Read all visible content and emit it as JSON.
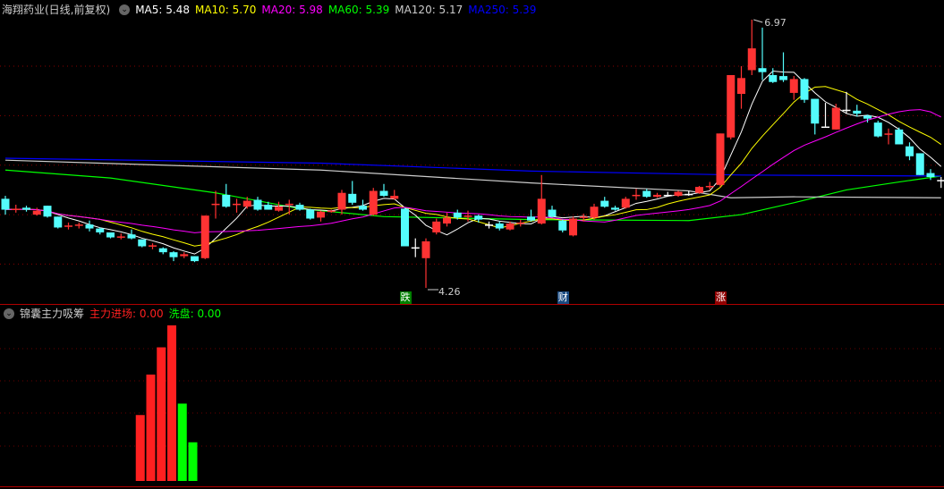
{
  "header": {
    "title": "海翔药业(日线,前复权)",
    "ma": [
      {
        "label": "MA5: 5.48",
        "color": "#ffffff"
      },
      {
        "label": "MA10: 5.70",
        "color": "#ffff00"
      },
      {
        "label": "MA20: 5.98",
        "color": "#ff00ff"
      },
      {
        "label": "MA60: 5.39",
        "color": "#00ff00"
      },
      {
        "label": "MA120: 5.17",
        "color": "#cccccc"
      },
      {
        "label": "MA250: 5.39",
        "color": "#0000ff"
      }
    ]
  },
  "indicator": {
    "name": "锦囊主力吸筹",
    "main_label": "主力进场: 0.00",
    "main_color": "#ff2020",
    "wash_label": "洗盘: 0.00",
    "wash_color": "#00ff00"
  },
  "chart_data": [
    {
      "type": "candlestick",
      "ylim": [
        4.0,
        7.2
      ],
      "grid": true,
      "gridlines": [
        4.5,
        5.0,
        5.5,
        6.0,
        6.5
      ],
      "colors": {
        "up": "#ff3333",
        "down": "#54fcfc",
        "flat": "#ffffff"
      },
      "high_label": "6.97",
      "low_label": "4.26",
      "candles_ohlc_order": "open,close,high,low",
      "candles": [
        [
          5.16,
          5.05,
          5.19,
          5.0
        ],
        [
          5.06,
          5.06,
          5.1,
          5.02
        ],
        [
          5.07,
          5.05,
          5.09,
          5.03
        ],
        [
          5.0,
          5.04,
          5.07,
          4.99
        ],
        [
          5.09,
          4.98,
          5.09,
          4.97
        ],
        [
          4.98,
          4.87,
          4.98,
          4.86
        ],
        [
          4.88,
          4.89,
          4.92,
          4.85
        ],
        [
          4.89,
          4.9,
          4.92,
          4.86
        ],
        [
          4.9,
          4.86,
          4.94,
          4.83
        ],
        [
          4.86,
          4.82,
          4.87,
          4.8
        ],
        [
          4.82,
          4.77,
          4.82,
          4.76
        ],
        [
          4.78,
          4.78,
          4.81,
          4.75
        ],
        [
          4.8,
          4.76,
          4.85,
          4.75
        ],
        [
          4.75,
          4.68,
          4.75,
          4.67
        ],
        [
          4.68,
          4.69,
          4.71,
          4.65
        ],
        [
          4.66,
          4.62,
          4.67,
          4.6
        ],
        [
          4.62,
          4.57,
          4.63,
          4.53
        ],
        [
          4.58,
          4.6,
          4.62,
          4.56
        ],
        [
          4.58,
          4.53,
          4.58,
          4.52
        ],
        [
          4.56,
          4.99,
          4.99,
          4.55
        ],
        [
          5.1,
          5.11,
          5.24,
          4.96
        ],
        [
          5.2,
          5.08,
          5.31,
          5.07
        ],
        [
          5.1,
          5.11,
          5.16,
          5.02
        ],
        [
          5.08,
          5.14,
          5.18,
          5.06
        ],
        [
          5.15,
          5.05,
          5.18,
          5.04
        ],
        [
          5.1,
          5.05,
          5.13,
          5.05
        ],
        [
          5.04,
          5.08,
          5.13,
          5.03
        ],
        [
          5.1,
          5.11,
          5.15,
          5.0
        ],
        [
          5.1,
          5.05,
          5.12,
          5.04
        ],
        [
          5.05,
          4.96,
          5.06,
          4.95
        ],
        [
          4.97,
          5.03,
          5.04,
          4.93
        ],
        [
          5.03,
          5.04,
          5.05,
          5.02
        ],
        [
          5.05,
          5.22,
          5.25,
          5.0
        ],
        [
          5.21,
          5.12,
          5.34,
          5.1
        ],
        [
          5.09,
          5.05,
          5.15,
          5.04
        ],
        [
          5.0,
          5.24,
          5.27,
          4.99
        ],
        [
          5.24,
          5.19,
          5.31,
          5.18
        ],
        [
          5.16,
          5.19,
          5.25,
          5.15
        ],
        [
          5.06,
          4.68,
          5.07,
          4.68
        ],
        [
          4.67,
          4.67,
          4.76,
          4.57
        ],
        [
          4.56,
          4.73,
          4.76,
          4.26
        ],
        [
          4.82,
          4.93,
          4.96,
          4.8
        ],
        [
          4.91,
          4.97,
          5.02,
          4.88
        ],
        [
          5.02,
          4.97,
          5.05,
          4.95
        ],
        [
          4.98,
          4.99,
          5.04,
          4.93
        ],
        [
          4.99,
          4.95,
          5.0,
          4.92
        ],
        [
          4.9,
          4.9,
          4.93,
          4.86
        ],
        [
          4.91,
          4.86,
          4.93,
          4.84
        ],
        [
          4.85,
          4.91,
          4.93,
          4.84
        ],
        [
          4.91,
          4.92,
          4.95,
          4.88
        ],
        [
          4.98,
          4.94,
          5.05,
          4.93
        ],
        [
          4.91,
          5.16,
          5.4,
          4.9
        ],
        [
          5.05,
          4.98,
          5.09,
          4.97
        ],
        [
          4.94,
          4.84,
          4.95,
          4.82
        ],
        [
          4.79,
          4.96,
          4.98,
          4.78
        ],
        [
          4.97,
          4.98,
          5.01,
          4.93
        ],
        [
          4.97,
          5.08,
          5.11,
          4.95
        ],
        [
          5.14,
          5.08,
          5.18,
          5.07
        ],
        [
          5.07,
          5.05,
          5.09,
          5.04
        ],
        [
          5.07,
          5.16,
          5.18,
          5.06
        ],
        [
          5.2,
          5.2,
          5.26,
          5.15
        ],
        [
          5.24,
          5.18,
          5.26,
          5.17
        ],
        [
          5.18,
          5.2,
          5.22,
          5.17
        ],
        [
          5.2,
          5.19,
          5.23,
          5.18
        ],
        [
          5.19,
          5.23,
          5.24,
          5.18
        ],
        [
          5.21,
          5.21,
          5.24,
          5.19
        ],
        [
          5.22,
          5.28,
          5.29,
          5.21
        ],
        [
          5.29,
          5.29,
          5.33,
          5.25
        ],
        [
          5.3,
          5.82,
          5.82,
          5.28
        ],
        [
          5.78,
          6.41,
          6.41,
          5.76
        ],
        [
          6.22,
          6.38,
          6.5,
          6.07
        ],
        [
          6.46,
          6.68,
          6.97,
          6.41
        ],
        [
          6.48,
          6.44,
          6.89,
          6.36
        ],
        [
          6.41,
          6.34,
          6.48,
          6.33
        ],
        [
          6.4,
          6.36,
          6.64,
          6.34
        ],
        [
          6.23,
          6.37,
          6.4,
          6.16
        ],
        [
          6.37,
          6.16,
          6.38,
          6.13
        ],
        [
          6.17,
          5.92,
          6.17,
          5.81
        ],
        [
          5.89,
          5.89,
          6.13,
          5.89
        ],
        [
          5.86,
          6.08,
          6.12,
          5.86
        ],
        [
          6.06,
          6.06,
          6.24,
          6.02
        ],
        [
          6.05,
          6.02,
          6.11,
          5.99
        ],
        [
          6.0,
          5.97,
          6.01,
          5.93
        ],
        [
          5.93,
          5.79,
          5.95,
          5.78
        ],
        [
          5.81,
          5.82,
          5.87,
          5.71
        ],
        [
          5.86,
          5.71,
          5.88,
          5.71
        ],
        [
          5.69,
          5.59,
          5.73,
          5.55
        ],
        [
          5.62,
          5.4,
          5.62,
          5.4
        ],
        [
          5.42,
          5.38,
          5.46,
          5.35
        ],
        [
          5.34,
          5.35,
          5.38,
          5.27
        ]
      ],
      "computed_ma": [
        {
          "period": 5,
          "color": "#ffffff"
        },
        {
          "period": 10,
          "color": "#ffff00"
        },
        {
          "period": 20,
          "color": "#ff00ff"
        }
      ],
      "ma_series": [
        {
          "name": "MA60",
          "color": "#00ff00",
          "points": [
            [
              0,
              5.45
            ],
            [
              10,
              5.37
            ],
            [
              20,
              5.22
            ],
            [
              28,
              5.06
            ],
            [
              36,
              4.98
            ],
            [
              50,
              4.95
            ],
            [
              65,
              4.94
            ],
            [
              70,
              5.0
            ],
            [
              75,
              5.12
            ],
            [
              80,
              5.25
            ],
            [
              85,
              5.33
            ],
            [
              89,
              5.39
            ]
          ]
        },
        {
          "name": "MA120",
          "color": "#cccccc",
          "points": [
            [
              0,
              5.55
            ],
            [
              30,
              5.45
            ],
            [
              50,
              5.32
            ],
            [
              65,
              5.24
            ],
            [
              69,
              5.17
            ],
            [
              75,
              5.18
            ],
            [
              89,
              5.17
            ]
          ]
        },
        {
          "name": "MA250",
          "color": "#0000ff",
          "points": [
            [
              0,
              5.57
            ],
            [
              30,
              5.52
            ],
            [
              50,
              5.44
            ],
            [
              70,
              5.4
            ],
            [
              89,
              5.39
            ]
          ]
        }
      ],
      "signals": [
        {
          "index": 38,
          "label": "跌",
          "bg": "#008000"
        },
        {
          "index": 53,
          "label": "财",
          "bg": "#1a4a80"
        },
        {
          "index": 68,
          "label": "涨",
          "bg": "#900000"
        }
      ]
    },
    {
      "type": "bar",
      "ylim": [
        0,
        180
      ],
      "bars": [
        {
          "index": 13,
          "value": 75,
          "color": "#ff2020"
        },
        {
          "index": 14,
          "value": 121,
          "color": "#ff2020"
        },
        {
          "index": 15,
          "value": 152,
          "color": "#ff2020"
        },
        {
          "index": 16,
          "value": 177,
          "color": "#ff2020"
        },
        {
          "index": 17,
          "value": 88,
          "color": "#00ff00"
        },
        {
          "index": 18,
          "value": 44,
          "color": "#00ff00"
        }
      ]
    }
  ]
}
